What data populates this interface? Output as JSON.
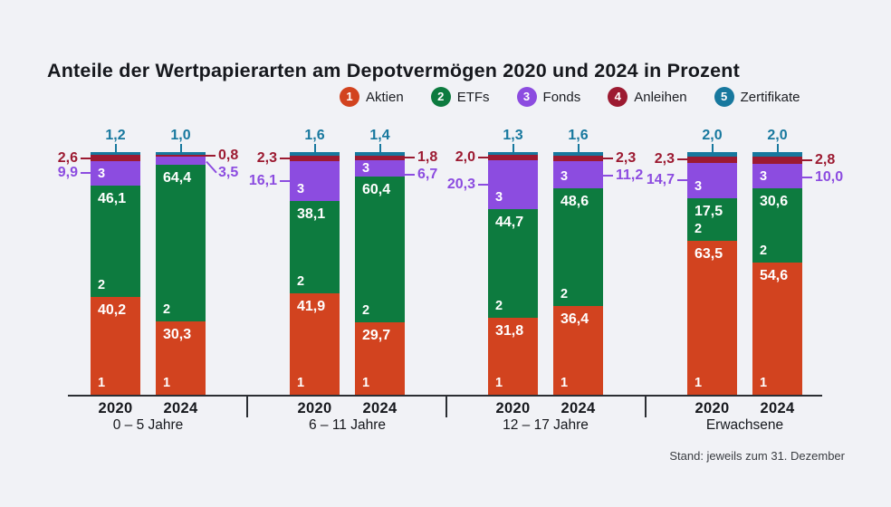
{
  "title": "Anteile der Wertpapierarten am Depotvermögen 2020 und 2024 in Prozent",
  "colors": {
    "aktien": "#d2431f",
    "etfs": "#0d7b3f",
    "fonds": "#8c4ce0",
    "anleihen": "#9c1a31",
    "zertifikate": "#17789e",
    "background": "#f1f2f6",
    "text": "#16181d",
    "axis": "#2b2e33",
    "segment_label": "#ffffff"
  },
  "chart_data": {
    "type": "bar",
    "stacked": true,
    "orientation": "vertical",
    "unit": "Prozent",
    "number_format": "de-comma",
    "title": "Anteile der Wertpapierarten am Depotvermögen 2020 und 2024 in Prozent",
    "footnote": "Stand: jeweils zum 31. Dezember",
    "categories": [
      "0 – 5 Jahre",
      "6 – 11 Jahre",
      "12 – 17 Jahre",
      "Erwachsene"
    ],
    "years": [
      "2020",
      "2024"
    ],
    "ylim": [
      0,
      100
    ],
    "legend_position": "top",
    "grid": false,
    "series": [
      {
        "index": 1,
        "name": "Aktien",
        "color_key": "aktien",
        "values": {
          "2020": [
            40.2,
            41.9,
            31.8,
            63.5
          ],
          "2024": [
            30.3,
            29.7,
            36.4,
            54.6
          ]
        }
      },
      {
        "index": 2,
        "name": "ETFs",
        "color_key": "etfs",
        "values": {
          "2020": [
            46.1,
            38.1,
            44.7,
            17.5
          ],
          "2024": [
            64.4,
            60.4,
            48.6,
            30.6
          ]
        }
      },
      {
        "index": 3,
        "name": "Fonds",
        "color_key": "fonds",
        "values": {
          "2020": [
            9.9,
            16.1,
            20.3,
            14.7
          ],
          "2024": [
            3.5,
            6.7,
            11.2,
            10.0
          ]
        }
      },
      {
        "index": 4,
        "name": "Anleihen",
        "color_key": "anleihen",
        "values": {
          "2020": [
            2.6,
            2.3,
            2.0,
            2.3
          ],
          "2024": [
            0.8,
            1.8,
            2.3,
            2.8
          ]
        }
      },
      {
        "index": 5,
        "name": "Zertifikate",
        "color_key": "zertifikate",
        "values": {
          "2020": [
            1.2,
            1.6,
            1.3,
            2.0
          ],
          "2024": [
            1.0,
            1.4,
            1.6,
            2.0
          ]
        }
      }
    ]
  }
}
